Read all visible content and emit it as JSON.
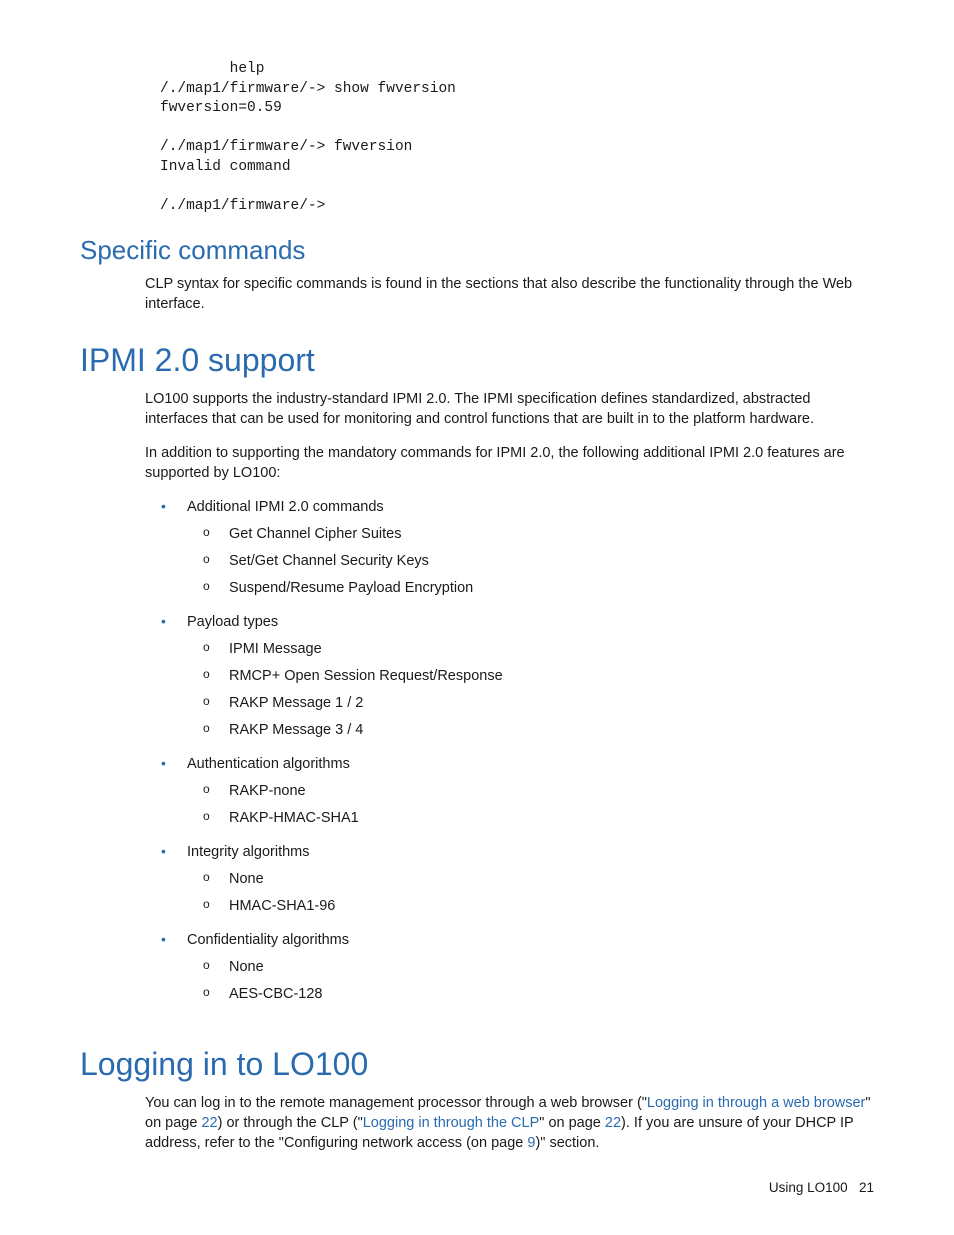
{
  "colors": {
    "heading": "#2a6bb0",
    "link": "#2a6bb0",
    "text": "#1a1a1a",
    "background": "#ffffff"
  },
  "code_block": "        help\n/./map1/firmware/-> show fwversion\nfwversion=0.59\n\n/./map1/firmware/-> fwversion\nInvalid command\n\n/./map1/firmware/->",
  "sections": {
    "specific_commands": {
      "title": "Specific commands",
      "body": "CLP syntax for specific commands is found in the sections that also describe the functionality through the Web interface."
    },
    "ipmi_support": {
      "title": "IPMI 2.0 support",
      "p1": "LO100 supports the industry-standard IPMI 2.0. The IPMI specification defines standardized, abstracted interfaces that can be used for monitoring and control functions that are built in to the platform hardware.",
      "p2": "In addition to supporting the mandatory commands for IPMI 2.0, the following additional IPMI 2.0 features are supported by LO100:",
      "bullets": [
        {
          "label": "Additional IPMI 2.0 commands",
          "sub": [
            "Get Channel Cipher Suites",
            "Set/Get Channel Security Keys",
            "Suspend/Resume Payload Encryption"
          ]
        },
        {
          "label": "Payload types",
          "sub": [
            "IPMI Message",
            "RMCP+ Open Session Request/Response",
            "RAKP Message 1 / 2",
            "RAKP Message 3 / 4"
          ]
        },
        {
          "label": "Authentication algorithms",
          "sub": [
            "RAKP-none",
            "RAKP-HMAC-SHA1"
          ]
        },
        {
          "label": "Integrity algorithms",
          "sub": [
            "None",
            "HMAC-SHA1-96"
          ]
        },
        {
          "label": "Confidentiality algorithms",
          "sub": [
            "None",
            "AES-CBC-128"
          ]
        }
      ]
    },
    "logging_in": {
      "title": "Logging in to LO100",
      "body_parts": {
        "t1": "You can log in to the remote management processor through a web browser (\"",
        "link1": "Logging in through a web browser",
        "t2": "\" on page ",
        "page1": "22",
        "t3": ") or through the CLP (\"",
        "link2": "Logging in through the CLP",
        "t4": "\" on page ",
        "page2": "22",
        "t5": "). If you are unsure of your DHCP IP address, refer to the \"Configuring network access (on page ",
        "page3": "9",
        "t6": ")\" section."
      }
    }
  },
  "footer": {
    "section_name": "Using LO100",
    "page_number": "21"
  }
}
